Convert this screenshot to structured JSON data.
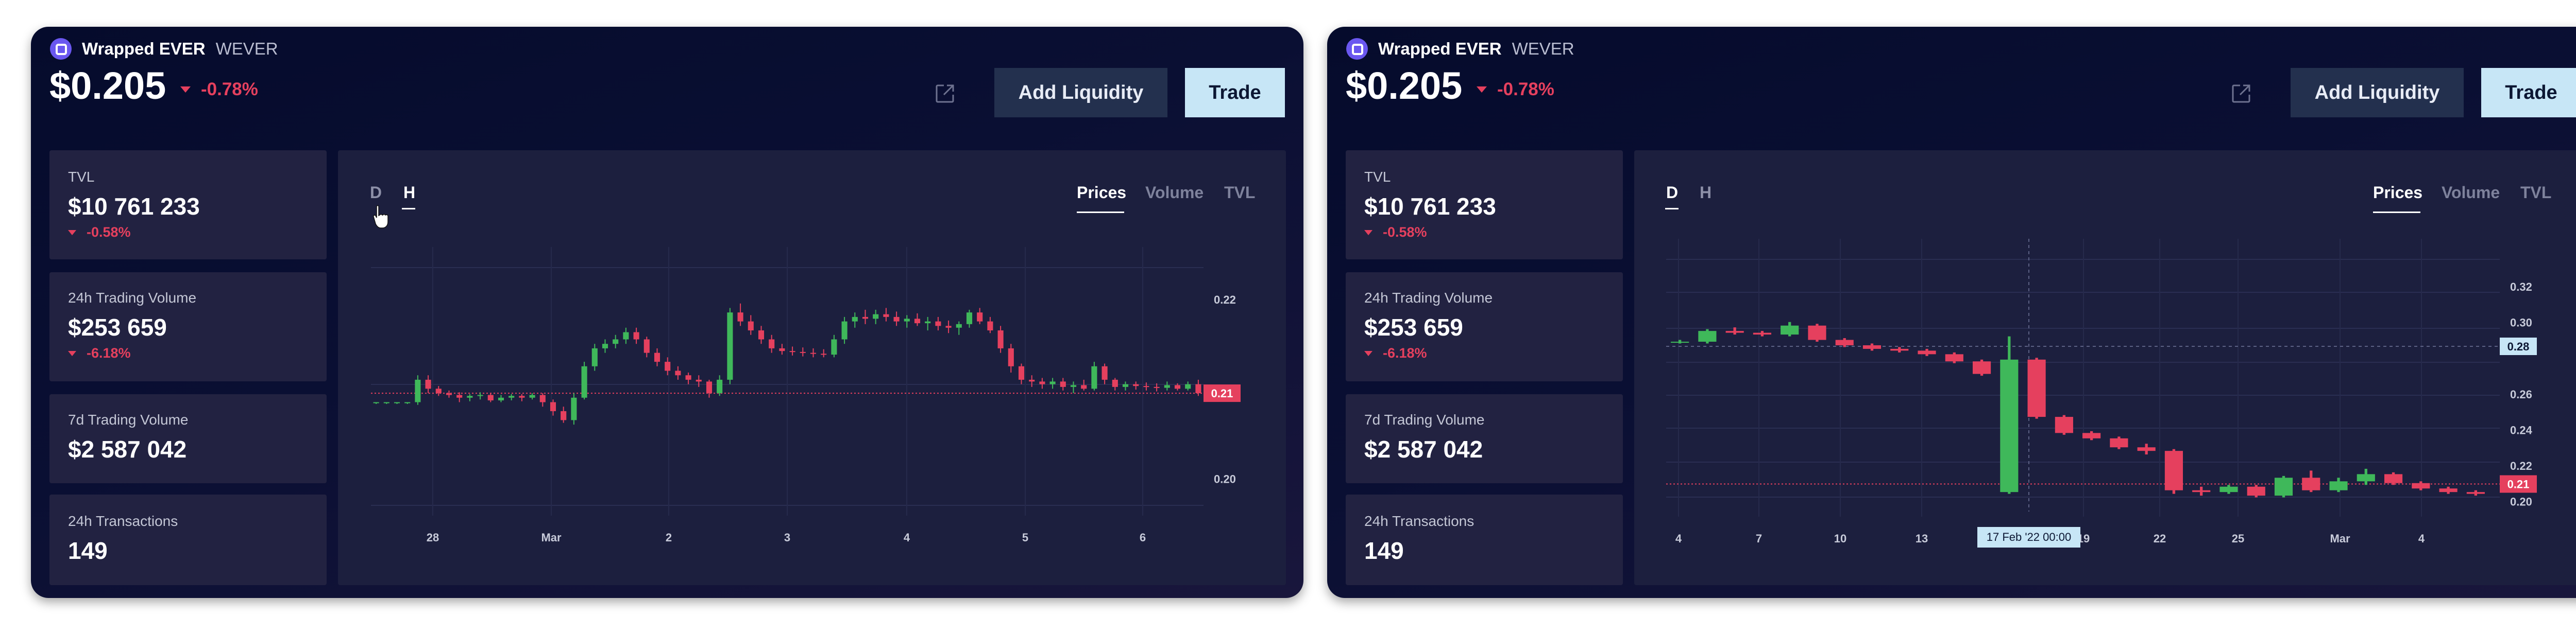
{
  "panels": [
    {
      "token": {
        "name": "Wrapped EVER",
        "symbol": "WEVER"
      },
      "price": "$0.205",
      "change": "-0.78%",
      "actions": {
        "add_liquidity": "Add Liquidity",
        "trade": "Trade"
      },
      "stats": [
        {
          "label": "TVL",
          "value": "$10 761 233",
          "change": "-0.58%"
        },
        {
          "label": "24h Trading Volume",
          "value": "$253 659",
          "change": "-6.18%"
        },
        {
          "label": "7d Trading Volume",
          "value": "$2 587 042"
        },
        {
          "label": "24h Transactions",
          "value": "149"
        }
      ],
      "timeframes": [
        "D",
        "H"
      ],
      "active_timeframe": "H",
      "tabs": [
        "Prices",
        "Volume",
        "TVL"
      ],
      "active_tab": "Prices",
      "current_price_label": "0.21"
    },
    {
      "token": {
        "name": "Wrapped EVER",
        "symbol": "WEVER"
      },
      "price": "$0.205",
      "change": "-0.78%",
      "actions": {
        "add_liquidity": "Add Liquidity",
        "trade": "Trade"
      },
      "stats": [
        {
          "label": "TVL",
          "value": "$10 761 233",
          "change": "-0.58%"
        },
        {
          "label": "24h Trading Volume",
          "value": "$253 659",
          "change": "-6.18%"
        },
        {
          "label": "7d Trading Volume",
          "value": "$2 587 042"
        },
        {
          "label": "24h Transactions",
          "value": "149"
        }
      ],
      "timeframes": [
        "D",
        "H"
      ],
      "active_timeframe": "D",
      "tabs": [
        "Prices",
        "Volume",
        "TVL"
      ],
      "active_tab": "Prices",
      "current_price_label": "0.21",
      "crosshair": {
        "price_label": "0.28",
        "time_label": "17 Feb '22   00:00"
      }
    }
  ],
  "colors": {
    "up": "#3fb85a",
    "down": "#e5405e",
    "accent": "#c7e6f6"
  },
  "chart_data": [
    {
      "type": "candlestick",
      "x_ticks": [
        "28",
        "Mar",
        "2",
        "3",
        "4",
        "5",
        "6"
      ],
      "y_ticks": [
        0.2,
        0.21,
        0.22
      ],
      "ylim": [
        0.197,
        0.2235
      ],
      "current_price": 0.2095,
      "ohlc": [
        [
          0.2085,
          0.2085,
          0.2083,
          0.2085
        ],
        [
          0.2085,
          0.2085,
          0.2083,
          0.2085
        ],
        [
          0.2085,
          0.2085,
          0.2083,
          0.2085
        ],
        [
          0.2085,
          0.2085,
          0.2083,
          0.2085
        ],
        [
          0.2085,
          0.2115,
          0.2082,
          0.211
        ],
        [
          0.211,
          0.2115,
          0.2095,
          0.21
        ],
        [
          0.21,
          0.2103,
          0.2092,
          0.2095
        ],
        [
          0.2095,
          0.2098,
          0.209,
          0.2093
        ],
        [
          0.2093,
          0.2096,
          0.2085,
          0.209
        ],
        [
          0.209,
          0.2094,
          0.2086,
          0.2092
        ],
        [
          0.2092,
          0.2096,
          0.2088,
          0.2093
        ],
        [
          0.2093,
          0.2095,
          0.2085,
          0.2087
        ],
        [
          0.2087,
          0.2093,
          0.2085,
          0.209
        ],
        [
          0.209,
          0.2094,
          0.2087,
          0.2092
        ],
        [
          0.2092,
          0.2094,
          0.2086,
          0.209
        ],
        [
          0.209,
          0.2095,
          0.2088,
          0.2093
        ],
        [
          0.2093,
          0.2095,
          0.208,
          0.2085
        ],
        [
          0.2085,
          0.2088,
          0.207,
          0.2075
        ],
        [
          0.2075,
          0.208,
          0.2062,
          0.2065
        ],
        [
          0.2065,
          0.2095,
          0.206,
          0.209
        ],
        [
          0.209,
          0.213,
          0.2088,
          0.2125
        ],
        [
          0.2125,
          0.215,
          0.212,
          0.2145
        ],
        [
          0.2145,
          0.2155,
          0.214,
          0.215
        ],
        [
          0.215,
          0.216,
          0.2145,
          0.2155
        ],
        [
          0.2155,
          0.2168,
          0.215,
          0.2163
        ],
        [
          0.2163,
          0.2168,
          0.215,
          0.2155
        ],
        [
          0.2155,
          0.2158,
          0.2135,
          0.214
        ],
        [
          0.214,
          0.2145,
          0.2125,
          0.213
        ],
        [
          0.213,
          0.2135,
          0.2115,
          0.212
        ],
        [
          0.212,
          0.2125,
          0.211,
          0.2115
        ],
        [
          0.2115,
          0.2118,
          0.2105,
          0.211
        ],
        [
          0.211,
          0.2115,
          0.2102,
          0.2108
        ],
        [
          0.2108,
          0.211,
          0.209,
          0.2095
        ],
        [
          0.2095,
          0.2115,
          0.2092,
          0.211
        ],
        [
          0.211,
          0.219,
          0.2105,
          0.2185
        ],
        [
          0.2185,
          0.2195,
          0.217,
          0.2175
        ],
        [
          0.2175,
          0.2182,
          0.216,
          0.2165
        ],
        [
          0.2165,
          0.217,
          0.215,
          0.2155
        ],
        [
          0.2155,
          0.216,
          0.214,
          0.2145
        ],
        [
          0.2145,
          0.215,
          0.2138,
          0.2142
        ],
        [
          0.2142,
          0.2147,
          0.2137,
          0.2141
        ],
        [
          0.2141,
          0.2146,
          0.2136,
          0.214
        ],
        [
          0.214,
          0.2145,
          0.2135,
          0.2139
        ],
        [
          0.2139,
          0.2144,
          0.2135,
          0.2138
        ],
        [
          0.2138,
          0.216,
          0.2135,
          0.2155
        ],
        [
          0.2155,
          0.218,
          0.215,
          0.2175
        ],
        [
          0.2175,
          0.2185,
          0.2168,
          0.218
        ],
        [
          0.218,
          0.2188,
          0.2172,
          0.2178
        ],
        [
          0.2178,
          0.2188,
          0.2172,
          0.2183
        ],
        [
          0.2183,
          0.219,
          0.2175,
          0.218
        ],
        [
          0.218,
          0.2186,
          0.217,
          0.2175
        ],
        [
          0.2175,
          0.2182,
          0.2168,
          0.2178
        ],
        [
          0.2178,
          0.2184,
          0.217,
          0.2173
        ],
        [
          0.2173,
          0.218,
          0.2165,
          0.2175
        ],
        [
          0.2175,
          0.218,
          0.2165,
          0.217
        ],
        [
          0.217,
          0.2176,
          0.2162,
          0.2168
        ],
        [
          0.2168,
          0.2175,
          0.216,
          0.2172
        ],
        [
          0.2172,
          0.2188,
          0.2168,
          0.2185
        ],
        [
          0.2185,
          0.219,
          0.2172,
          0.2175
        ],
        [
          0.2175,
          0.218,
          0.2162,
          0.2165
        ],
        [
          0.2165,
          0.217,
          0.214,
          0.2145
        ],
        [
          0.2145,
          0.215,
          0.2118,
          0.2125
        ],
        [
          0.2125,
          0.2128,
          0.2105,
          0.211
        ],
        [
          0.211,
          0.2115,
          0.2102,
          0.2108
        ],
        [
          0.2108,
          0.2112,
          0.21,
          0.2105
        ],
        [
          0.2105,
          0.2112,
          0.21,
          0.2108
        ],
        [
          0.2108,
          0.2112,
          0.2098,
          0.2102
        ],
        [
          0.2102,
          0.2108,
          0.2095,
          0.2104
        ],
        [
          0.2104,
          0.211,
          0.2098,
          0.21
        ],
        [
          0.21,
          0.213,
          0.2098,
          0.2125
        ],
        [
          0.2125,
          0.2128,
          0.2105,
          0.211
        ],
        [
          0.211,
          0.2112,
          0.2098,
          0.2102
        ],
        [
          0.2102,
          0.2108,
          0.2098,
          0.2105
        ],
        [
          0.2105,
          0.2108,
          0.2099,
          0.2103
        ],
        [
          0.2103,
          0.2107,
          0.2098,
          0.2102
        ],
        [
          0.2102,
          0.2106,
          0.2097,
          0.2101
        ],
        [
          0.2101,
          0.2108,
          0.2098,
          0.2104
        ],
        [
          0.2104,
          0.2106,
          0.2098,
          0.21
        ],
        [
          0.21,
          0.2108,
          0.2098,
          0.2105
        ],
        [
          0.2105,
          0.211,
          0.2092,
          0.2095
        ]
      ]
    },
    {
      "type": "candlestick",
      "x_ticks": [
        "4",
        "7",
        "10",
        "13",
        "19",
        "22",
        "25",
        "Mar",
        "4"
      ],
      "y_ticks": [
        0.2,
        0.22,
        0.24,
        0.26,
        0.3,
        0.32
      ],
      "ylim": [
        0.197,
        0.335
      ],
      "current_price": 0.2095,
      "ohlc": [
        [
          0.289,
          0.29,
          0.288,
          0.289
        ],
        [
          0.289,
          0.296,
          0.288,
          0.295
        ],
        [
          0.295,
          0.297,
          0.293,
          0.294
        ],
        [
          0.294,
          0.295,
          0.292,
          0.293
        ],
        [
          0.293,
          0.3,
          0.292,
          0.298
        ],
        [
          0.298,
          0.299,
          0.289,
          0.29
        ],
        [
          0.29,
          0.291,
          0.286,
          0.287
        ],
        [
          0.287,
          0.288,
          0.284,
          0.285
        ],
        [
          0.285,
          0.286,
          0.283,
          0.284
        ],
        [
          0.284,
          0.285,
          0.281,
          0.282
        ],
        [
          0.282,
          0.283,
          0.277,
          0.278
        ],
        [
          0.278,
          0.279,
          0.27,
          0.271
        ],
        [
          0.205,
          0.292,
          0.204,
          0.279
        ],
        [
          0.279,
          0.28,
          0.246,
          0.247
        ],
        [
          0.247,
          0.248,
          0.237,
          0.238
        ],
        [
          0.238,
          0.239,
          0.234,
          0.235
        ],
        [
          0.235,
          0.236,
          0.229,
          0.23
        ],
        [
          0.23,
          0.232,
          0.226,
          0.228
        ],
        [
          0.228,
          0.229,
          0.204,
          0.206
        ],
        [
          0.206,
          0.208,
          0.203,
          0.205
        ],
        [
          0.205,
          0.209,
          0.204,
          0.208
        ],
        [
          0.208,
          0.209,
          0.202,
          0.203
        ],
        [
          0.203,
          0.214,
          0.202,
          0.213
        ],
        [
          0.213,
          0.217,
          0.205,
          0.206
        ],
        [
          0.206,
          0.213,
          0.205,
          0.211
        ],
        [
          0.211,
          0.218,
          0.209,
          0.215
        ],
        [
          0.215,
          0.216,
          0.209,
          0.21
        ],
        [
          0.21,
          0.211,
          0.206,
          0.207
        ],
        [
          0.207,
          0.208,
          0.204,
          0.205
        ],
        [
          0.205,
          0.206,
          0.203,
          0.204
        ]
      ]
    }
  ]
}
